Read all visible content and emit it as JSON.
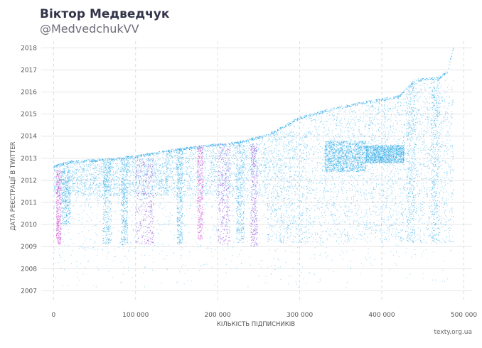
{
  "header": {
    "title": "Віктор Медведчук",
    "handle": "@MedvedchukVV",
    "credit": "texty.org.ua"
  },
  "colors": {
    "primary_dots": "#2aa8e8",
    "bot_dots": "#8a3fd6",
    "magenta_dots": "#d63fd0",
    "grid": "#e6e6e6"
  },
  "chart_data": {
    "type": "scatter",
    "title": "",
    "xlabel": "КІЛЬКІСТЬ ПІДПИСНИКІВ",
    "ylabel": "ДАТА РЕЄСТРАЦІЇ В TWITTER",
    "xlim": [
      -15000,
      510000
    ],
    "ylim": [
      2006.5,
      2018.3
    ],
    "x_ticks": [
      {
        "value": 0,
        "label": "0"
      },
      {
        "value": 100000,
        "label": "100 000"
      },
      {
        "value": 200000,
        "label": "200 000"
      },
      {
        "value": 300000,
        "label": "300 000"
      },
      {
        "value": 400000,
        "label": "400 000"
      },
      {
        "value": 500000,
        "label": "500 000"
      }
    ],
    "y_ticks": [
      {
        "value": 2007,
        "label": "2007"
      },
      {
        "value": 2008,
        "label": "2008"
      },
      {
        "value": 2009,
        "label": "2009"
      },
      {
        "value": 2010,
        "label": "2010"
      },
      {
        "value": 2011,
        "label": "2011"
      },
      {
        "value": 2012,
        "label": "2012"
      },
      {
        "value": 2013,
        "label": "2013"
      },
      {
        "value": 2014,
        "label": "2014"
      },
      {
        "value": 2015,
        "label": "2015"
      },
      {
        "value": 2016,
        "label": "2016"
      },
      {
        "value": 2017,
        "label": "2017"
      },
      {
        "value": 2018,
        "label": "2018"
      }
    ],
    "upper_envelope": [
      [
        0,
        2012.7
      ],
      [
        20000,
        2012.9
      ],
      [
        60000,
        2013.0
      ],
      [
        100000,
        2013.15
      ],
      [
        140000,
        2013.4
      ],
      [
        180000,
        2013.6
      ],
      [
        220000,
        2013.75
      ],
      [
        260000,
        2014.1
      ],
      [
        300000,
        2014.9
      ],
      [
        340000,
        2015.3
      ],
      [
        380000,
        2015.6
      ],
      [
        420000,
        2015.85
      ],
      [
        440000,
        2016.6
      ],
      [
        470000,
        2016.7
      ],
      [
        480000,
        2017.0
      ],
      [
        487000,
        2018.1
      ]
    ],
    "dense_bands": [
      {
        "x": [
          0,
          140000
        ],
        "y": [
          2011.3,
          2013.0
        ],
        "color": "primary",
        "density": 0.75
      },
      {
        "x": [
          135000,
          260000
        ],
        "y": [
          2011.3,
          2013.7
        ],
        "color": "primary",
        "density": 0.6
      },
      {
        "x": [
          260000,
          310000
        ],
        "y": [
          2009.2,
          2014.3
        ],
        "color": "primary",
        "density": 0.45
      },
      {
        "x": [
          310000,
          380000
        ],
        "y": [
          2009.2,
          2015.2
        ],
        "color": "primary",
        "density": 0.4
      },
      {
        "x": [
          330000,
          380000
        ],
        "y": [
          2012.4,
          2013.8
        ],
        "color": "primary",
        "density": 0.8
      },
      {
        "x": [
          380000,
          427000
        ],
        "y": [
          2009.2,
          2015.6
        ],
        "color": "primary",
        "density": 0.35
      },
      {
        "x": [
          380000,
          427000
        ],
        "y": [
          2012.8,
          2013.6
        ],
        "color": "primary",
        "density": 0.8
      },
      {
        "x": [
          427000,
          487000
        ],
        "y": [
          2009.2,
          2016.6
        ],
        "color": "primary",
        "density": 0.45
      }
    ],
    "vertical_streaks": [
      {
        "x": [
          60000,
          70000
        ],
        "y": [
          2009.1,
          2013.0
        ],
        "color": "primary"
      },
      {
        "x": [
          82000,
          90000
        ],
        "y": [
          2009.1,
          2013.0
        ],
        "color": "primary"
      },
      {
        "x": [
          100000,
          122000
        ],
        "y": [
          2009.1,
          2013.0
        ],
        "color": "bot"
      },
      {
        "x": [
          150000,
          157000
        ],
        "y": [
          2009.1,
          2013.7
        ],
        "color": "primary"
      },
      {
        "x": [
          175000,
          182000
        ],
        "y": [
          2009.3,
          2013.8
        ],
        "color": "magenta"
      },
      {
        "x": [
          200000,
          215000
        ],
        "y": [
          2009.1,
          2013.7
        ],
        "color": "bot"
      },
      {
        "x": [
          222000,
          232000
        ],
        "y": [
          2009.2,
          2013.7
        ],
        "color": "primary"
      },
      {
        "x": [
          240000,
          248000
        ],
        "y": [
          2009.0,
          2013.7
        ],
        "color": "bot"
      },
      {
        "x": [
          3000,
          9000
        ],
        "y": [
          2009.1,
          2012.5
        ],
        "color": "magenta"
      },
      {
        "x": [
          9000,
          20000
        ],
        "y": [
          2010.0,
          2012.5
        ],
        "color": "primary"
      },
      {
        "x": [
          430000,
          440000
        ],
        "y": [
          2009.2,
          2016.6
        ],
        "color": "primary"
      },
      {
        "x": [
          460000,
          470000
        ],
        "y": [
          2009.2,
          2016.6
        ],
        "color": "primary"
      }
    ],
    "sparse_range": {
      "x": [
        0,
        487000
      ],
      "y": [
        2007.0,
        2016.0
      ]
    }
  }
}
